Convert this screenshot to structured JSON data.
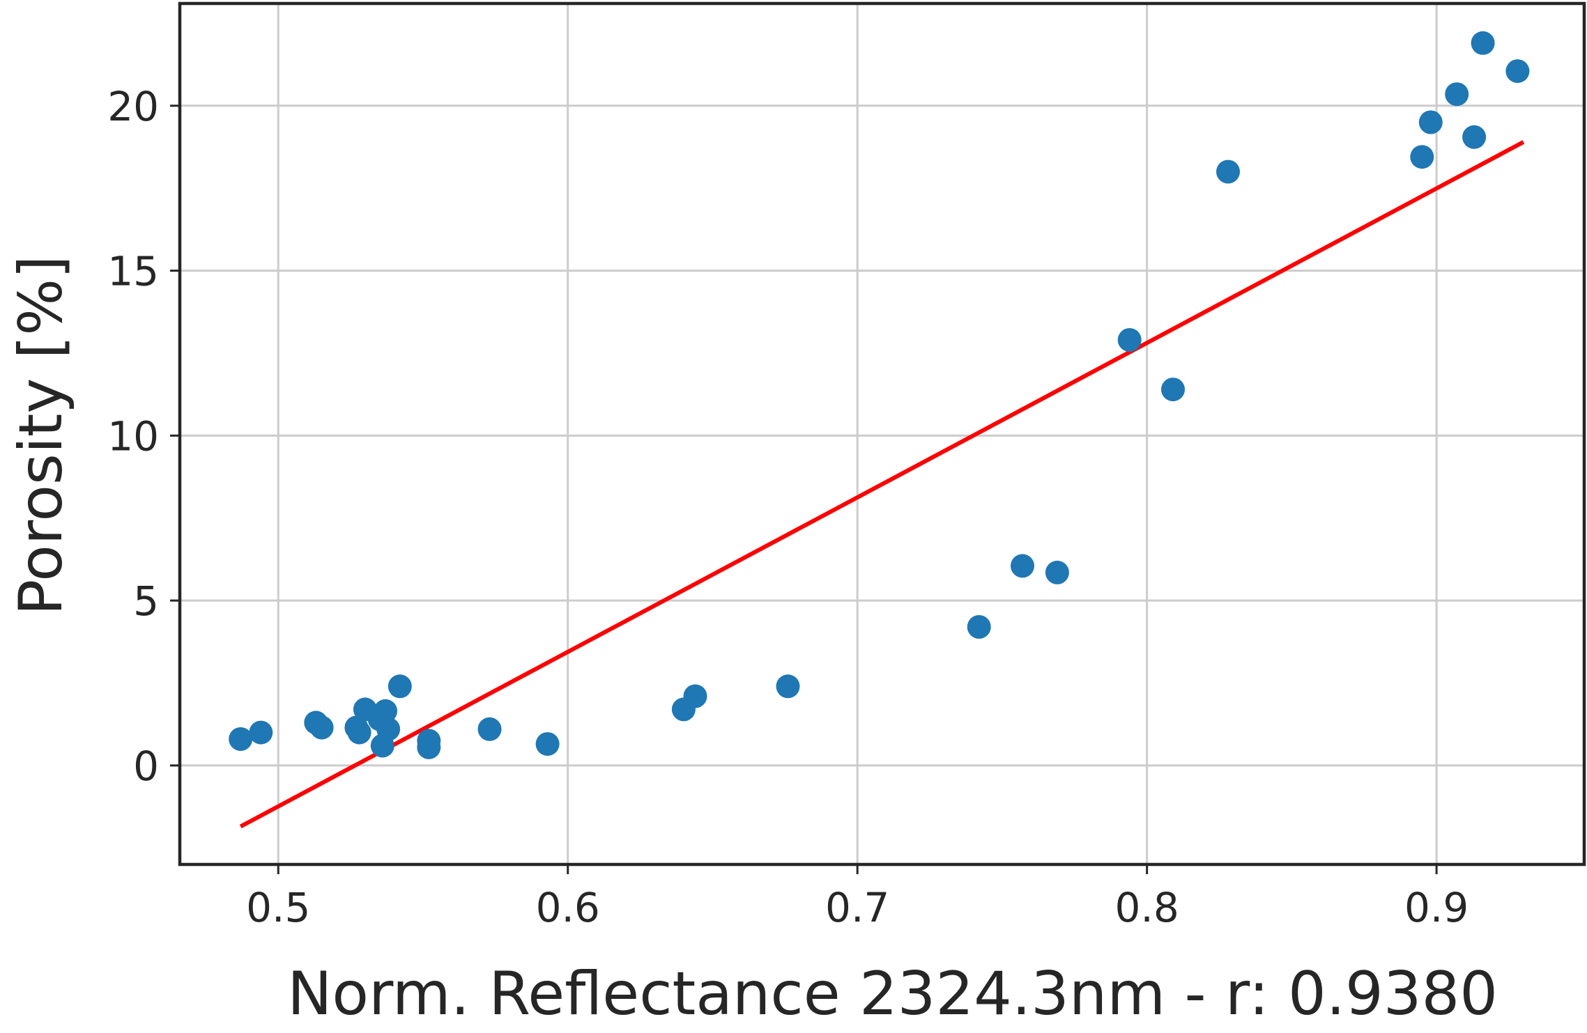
{
  "chart_data": {
    "type": "scatter",
    "xlabel": "Norm. Reflectance 2324.3nm - r:   0.9380",
    "ylabel": "Porosity [%]",
    "xlim": [
      0.466,
      0.951
    ],
    "ylim": [
      -3.0,
      23.1
    ],
    "xticks": [
      0.5,
      0.6,
      0.7,
      0.8,
      0.9
    ],
    "xtick_labels": [
      "0.5",
      "0.6",
      "0.7",
      "0.8",
      "0.9"
    ],
    "yticks": [
      0,
      5,
      10,
      15,
      20
    ],
    "ytick_labels": [
      "0",
      "5",
      "10",
      "15",
      "20"
    ],
    "grid": true,
    "series": [
      {
        "kind": "scatter",
        "color": "#1f77b4",
        "points": [
          {
            "x": 0.487,
            "y": 0.8
          },
          {
            "x": 0.494,
            "y": 1.0
          },
          {
            "x": 0.513,
            "y": 1.3
          },
          {
            "x": 0.515,
            "y": 1.15
          },
          {
            "x": 0.527,
            "y": 1.15
          },
          {
            "x": 0.528,
            "y": 1.0
          },
          {
            "x": 0.53,
            "y": 1.7
          },
          {
            "x": 0.535,
            "y": 1.4
          },
          {
            "x": 0.536,
            "y": 0.6
          },
          {
            "x": 0.537,
            "y": 1.65
          },
          {
            "x": 0.538,
            "y": 1.1
          },
          {
            "x": 0.542,
            "y": 2.4
          },
          {
            "x": 0.552,
            "y": 0.75
          },
          {
            "x": 0.552,
            "y": 0.55
          },
          {
            "x": 0.573,
            "y": 1.1
          },
          {
            "x": 0.593,
            "y": 0.65
          },
          {
            "x": 0.64,
            "y": 1.7
          },
          {
            "x": 0.644,
            "y": 2.1
          },
          {
            "x": 0.676,
            "y": 2.4
          },
          {
            "x": 0.742,
            "y": 4.2
          },
          {
            "x": 0.757,
            "y": 6.05
          },
          {
            "x": 0.769,
            "y": 5.85
          },
          {
            "x": 0.794,
            "y": 12.9
          },
          {
            "x": 0.809,
            "y": 11.4
          },
          {
            "x": 0.828,
            "y": 18.0
          },
          {
            "x": 0.895,
            "y": 18.45
          },
          {
            "x": 0.898,
            "y": 19.5
          },
          {
            "x": 0.907,
            "y": 20.35
          },
          {
            "x": 0.913,
            "y": 19.05
          },
          {
            "x": 0.916,
            "y": 21.9
          },
          {
            "x": 0.928,
            "y": 21.05
          }
        ]
      },
      {
        "kind": "line",
        "color": "#ff0000",
        "points": [
          {
            "x": 0.487,
            "y": -1.85
          },
          {
            "x": 0.93,
            "y": 18.9
          }
        ]
      }
    ]
  }
}
